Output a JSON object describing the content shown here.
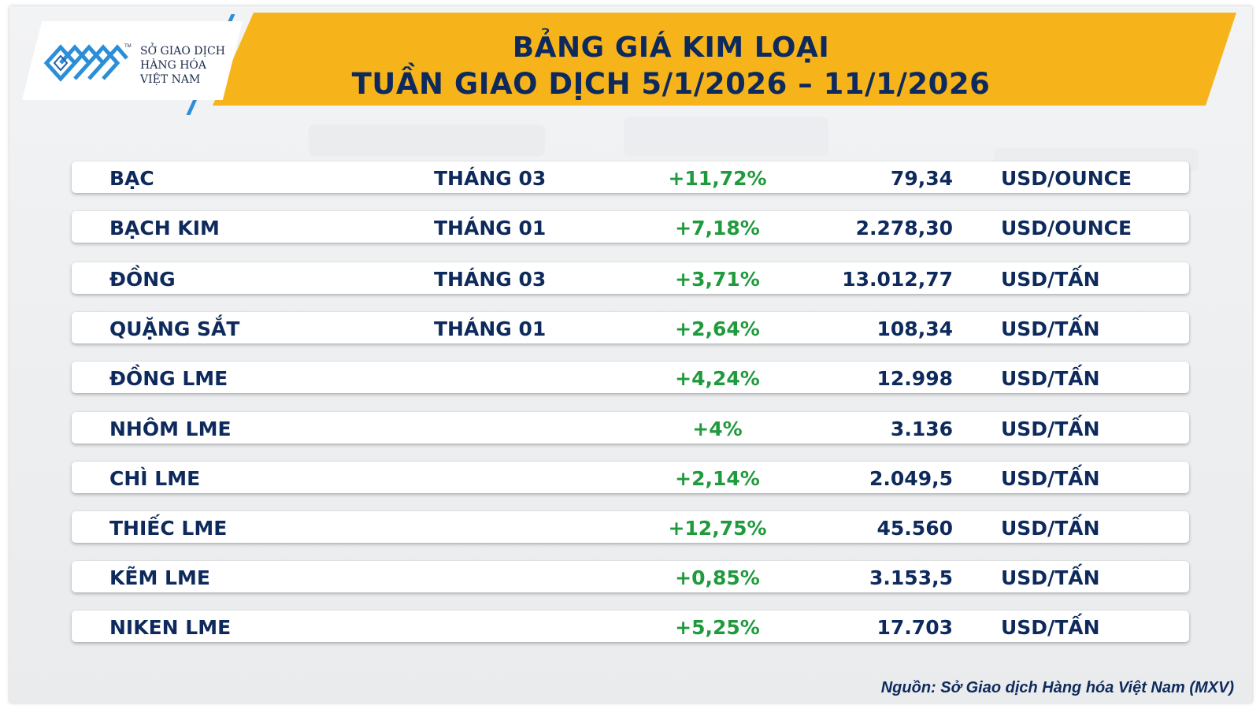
{
  "header": {
    "title_line1": "BẢNG GIÁ KIM LOẠI",
    "title_line2": "TUẦN GIAO DỊCH 5/1/2026 – 11/1/2026",
    "accent_color": "#f6b41a",
    "text_color": "#0e2a5c"
  },
  "logo": {
    "icon": "mxv-logo-mark",
    "line1": "SỞ GIAO DỊCH",
    "line2": "HÀNG HÓA",
    "line3": "VIỆT NAM",
    "tm": "TM"
  },
  "table": {
    "positive_color": "#1f9a3c",
    "rows": [
      {
        "name": "BẠC",
        "month": "THÁNG 03",
        "change": "+11,72%",
        "price": "79,34",
        "unit": "USD/OUNCE"
      },
      {
        "name": "BẠCH KIM",
        "month": "THÁNG 01",
        "change": "+7,18%",
        "price": "2.278,30",
        "unit": "USD/OUNCE"
      },
      {
        "name": "ĐỒNG",
        "month": "THÁNG 03",
        "change": "+3,71%",
        "price": "13.012,77",
        "unit": "USD/TẤN"
      },
      {
        "name": "QUẶNG SẮT",
        "month": "THÁNG 01",
        "change": "+2,64%",
        "price": "108,34",
        "unit": "USD/TẤN"
      },
      {
        "name": "ĐỒNG LME",
        "month": "",
        "change": "+4,24%",
        "price": "12.998",
        "unit": "USD/TẤN"
      },
      {
        "name": "NHÔM LME",
        "month": "",
        "change": "+4%",
        "price": "3.136",
        "unit": "USD/TẤN"
      },
      {
        "name": "CHÌ LME",
        "month": "",
        "change": "+2,14%",
        "price": "2.049,5",
        "unit": "USD/TẤN"
      },
      {
        "name": "THIẾC LME",
        "month": "",
        "change": "+12,75%",
        "price": "45.560",
        "unit": "USD/TẤN"
      },
      {
        "name": "KẼM LME",
        "month": "",
        "change": "+0,85%",
        "price": "3.153,5",
        "unit": "USD/TẤN"
      },
      {
        "name": "NIKEN LME",
        "month": "",
        "change": "+5,25%",
        "price": "17.703",
        "unit": "USD/TẤN"
      }
    ]
  },
  "footer": {
    "source": "Nguồn: Sở Giao dịch Hàng hóa Việt Nam (MXV)"
  }
}
